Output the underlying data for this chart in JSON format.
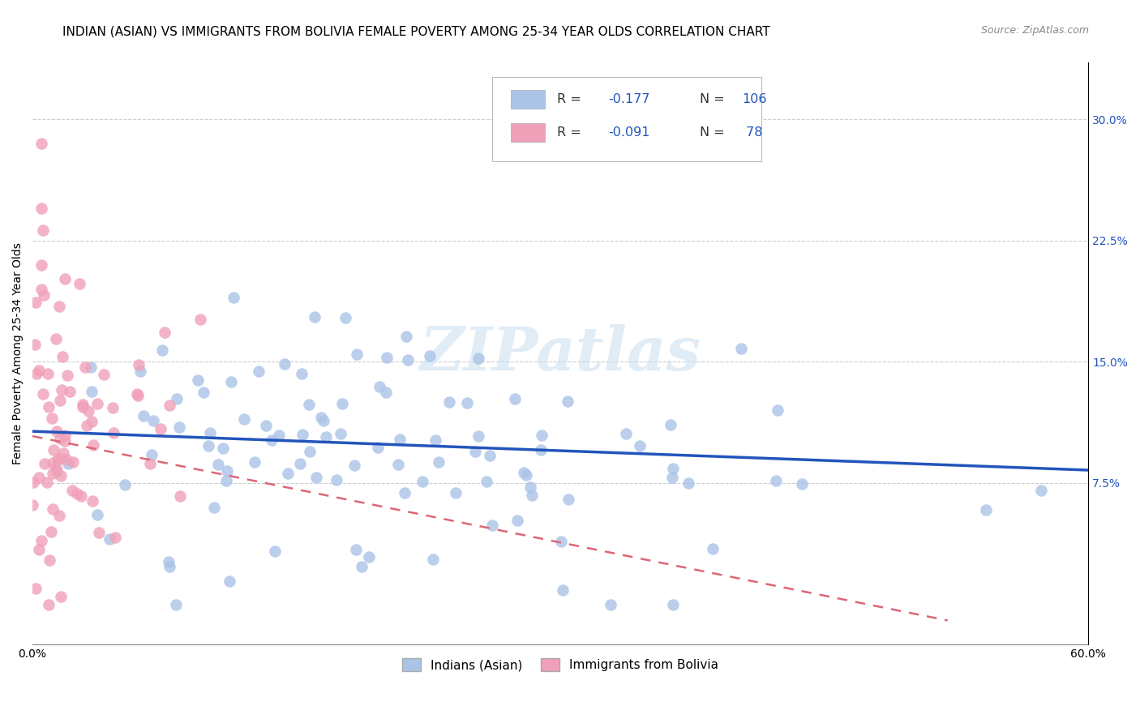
{
  "title": "INDIAN (ASIAN) VS IMMIGRANTS FROM BOLIVIA FEMALE POVERTY AMONG 25-34 YEAR OLDS CORRELATION CHART",
  "source": "Source: ZipAtlas.com",
  "ylabel": "Female Poverty Among 25-34 Year Olds",
  "ytick_labels": [
    "7.5%",
    "15.0%",
    "22.5%",
    "30.0%"
  ],
  "ytick_values": [
    0.075,
    0.15,
    0.225,
    0.3
  ],
  "xlim": [
    0.0,
    0.6
  ],
  "ylim": [
    -0.025,
    0.335
  ],
  "blue_color": "#aac4e8",
  "pink_color": "#f0a0b8",
  "blue_line_color": "#2255bb",
  "pink_line_color": "#dd6677",
  "watermark": "ZIPatlas",
  "n_blue": 106,
  "n_pink": 78,
  "r_blue": -0.177,
  "r_pink": -0.091,
  "blue_line_start_y": 0.107,
  "blue_line_end_y": 0.083,
  "pink_line_start_y": 0.104,
  "pink_line_end_y": -0.01,
  "pink_line_end_x": 0.52,
  "title_fontsize": 11,
  "axis_label_fontsize": 10,
  "tick_fontsize": 10,
  "legend_r_blue": "-0.177",
  "legend_n_blue": "106",
  "legend_r_pink": "-0.091",
  "legend_n_pink": " 78",
  "legend_labels": [
    "Indians (Asian)",
    "Immigrants from Bolivia"
  ]
}
